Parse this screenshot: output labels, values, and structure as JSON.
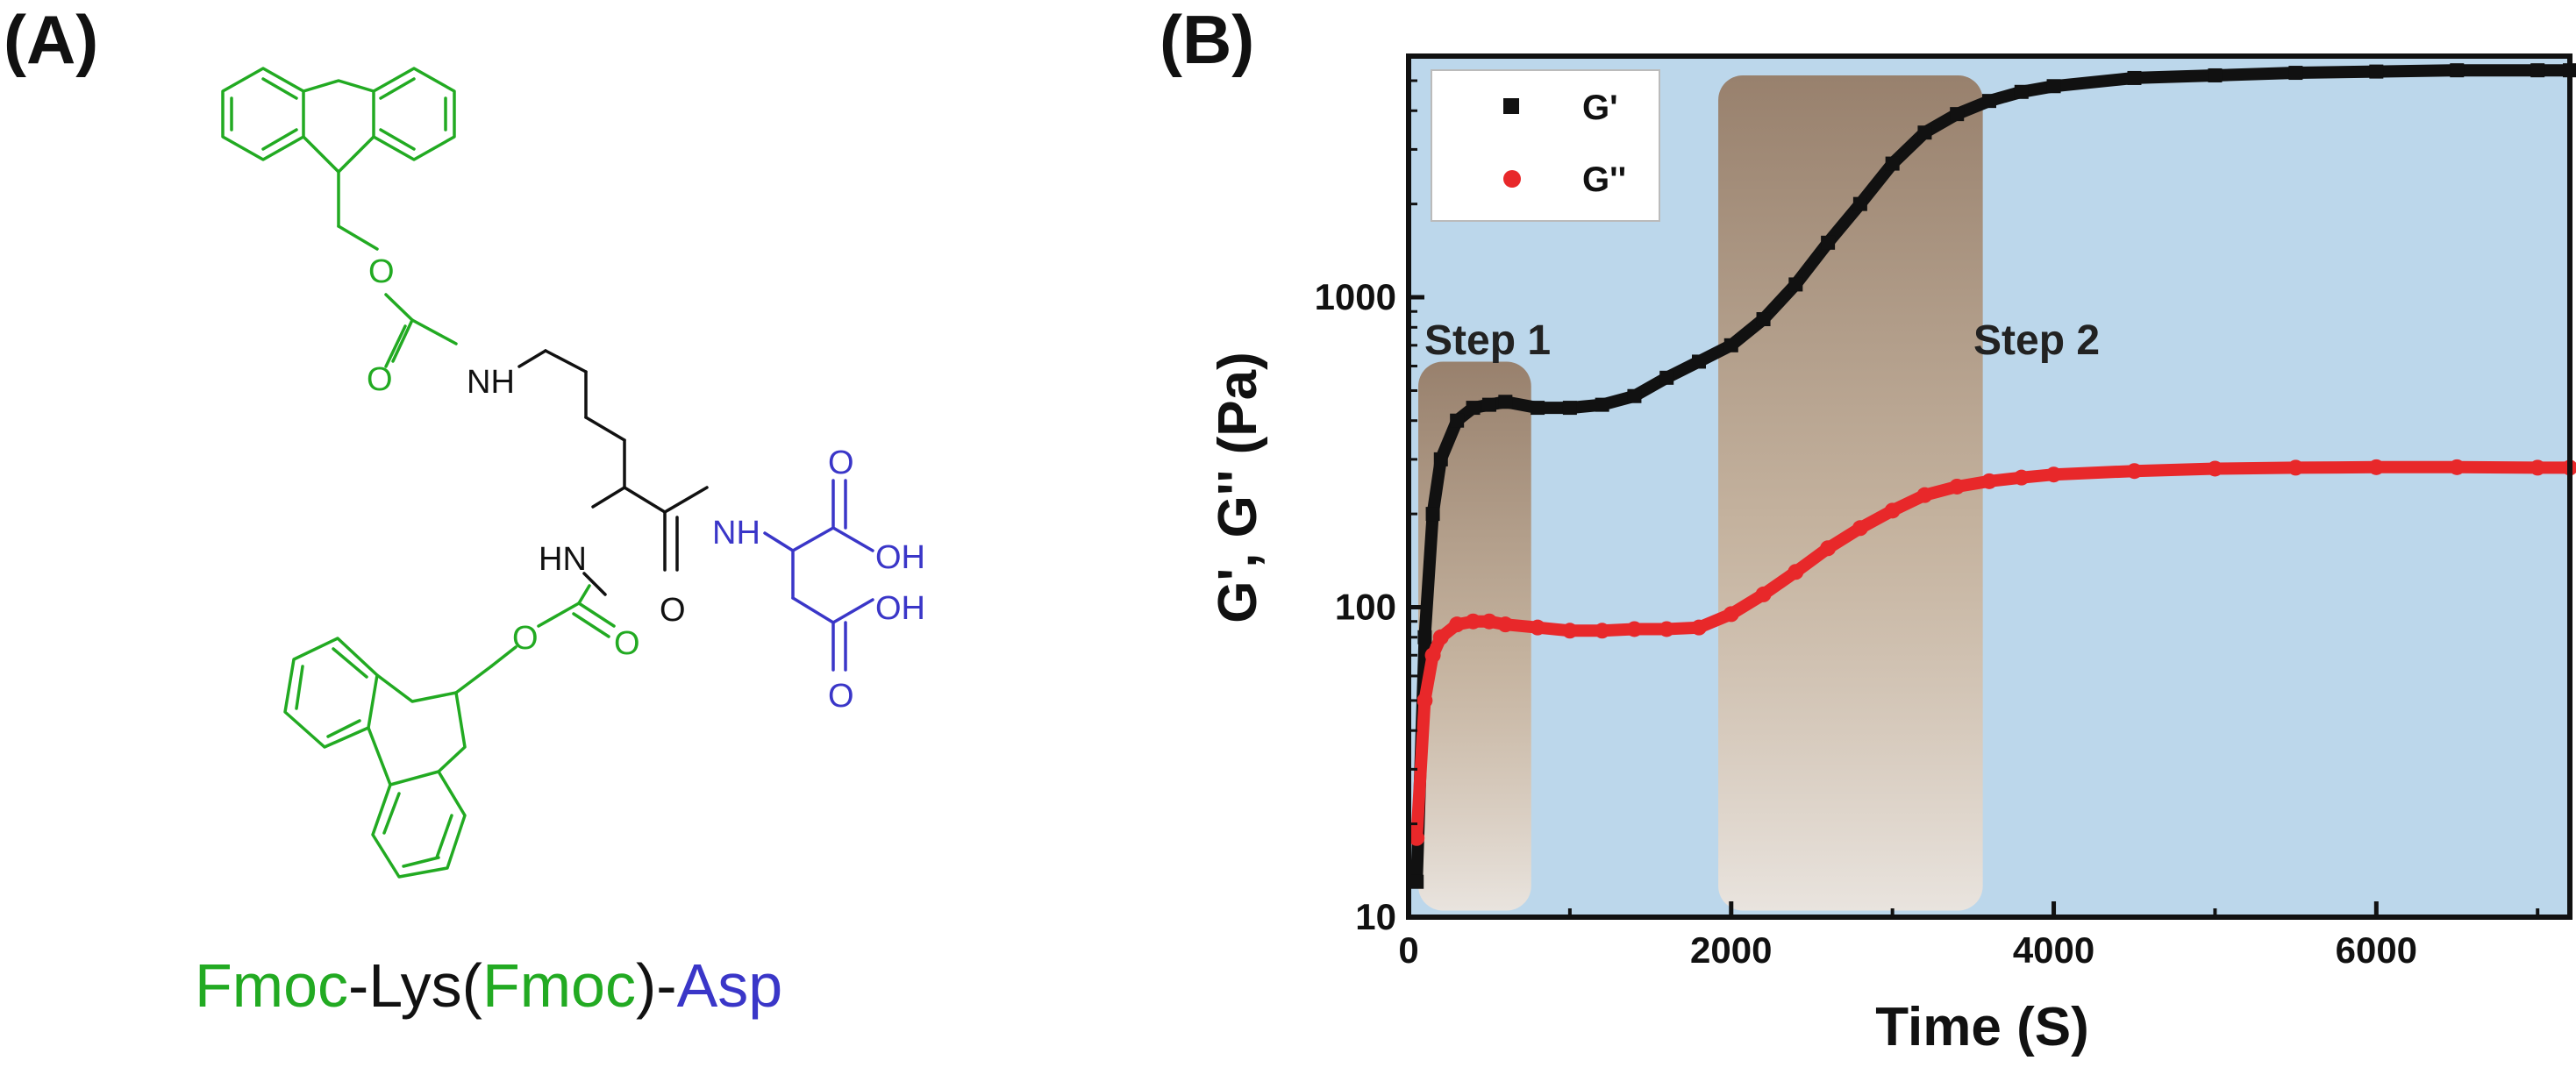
{
  "panel_a": {
    "label": "(A)",
    "caption": {
      "fmoc1": "Fmoc",
      "dash1": "-Lys(",
      "fmoc2": "Fmoc",
      "dash2": ")-",
      "asp": "Asp"
    },
    "atoms": {
      "o_ester1": "O",
      "o_carbonyl1": "O",
      "nh1": "NH",
      "hn2": "HN",
      "o_ester2": "O",
      "o_carbonyl2": "O",
      "o_amide": "O",
      "nh3": "NH",
      "o_acid1": "O",
      "oh1": "OH",
      "oh2": "OH",
      "o_acid2": "O"
    },
    "colors": {
      "fmoc": "#22aa22",
      "lys": "#111111",
      "asp": "#3a36c8"
    }
  },
  "panel_b": {
    "label": "(B)"
  },
  "chart_data": {
    "type": "scatter",
    "title": "",
    "xlabel": "Time (S)",
    "ylabel": "G', G'' (Pa)",
    "xlim": [
      0,
      7200
    ],
    "ylim": [
      10,
      6000
    ],
    "yscale": "log",
    "xticks": [
      0,
      2000,
      4000,
      6000
    ],
    "xtick_labels": [
      "0",
      "2000",
      "4000",
      "6000"
    ],
    "yticks": [
      10,
      100,
      1000
    ],
    "ytick_labels": [
      "10",
      "100",
      "1000"
    ],
    "legend": {
      "position": "top-left",
      "entries": [
        "G'",
        "G''"
      ]
    },
    "background_color": "#bcd7eb",
    "series": [
      {
        "name": "G'",
        "color": "#111111",
        "marker": "square",
        "x": [
          50,
          100,
          150,
          200,
          300,
          400,
          500,
          600,
          800,
          1000,
          1200,
          1400,
          1600,
          1800,
          2000,
          2200,
          2400,
          2600,
          2800,
          3000,
          3200,
          3400,
          3600,
          3800,
          4000,
          4500,
          5000,
          5500,
          6000,
          6500,
          7000,
          7200
        ],
        "y": [
          13,
          80,
          200,
          300,
          400,
          440,
          450,
          460,
          440,
          440,
          450,
          480,
          550,
          620,
          700,
          850,
          1100,
          1500,
          2000,
          2700,
          3400,
          3900,
          4300,
          4600,
          4800,
          5100,
          5200,
          5300,
          5350,
          5400,
          5400,
          5400
        ]
      },
      {
        "name": "G''",
        "color": "#e8282a",
        "marker": "circle",
        "x": [
          50,
          100,
          150,
          200,
          300,
          400,
          500,
          600,
          800,
          1000,
          1200,
          1400,
          1600,
          1800,
          2000,
          2200,
          2400,
          2600,
          2800,
          3000,
          3200,
          3400,
          3600,
          3800,
          4000,
          4500,
          5000,
          5500,
          6000,
          6500,
          7000,
          7200
        ],
        "y": [
          18,
          50,
          70,
          80,
          88,
          90,
          90,
          88,
          86,
          84,
          84,
          85,
          85,
          86,
          95,
          110,
          130,
          155,
          180,
          205,
          230,
          245,
          255,
          262,
          268,
          275,
          280,
          282,
          283,
          283,
          282,
          282
        ]
      }
    ],
    "annotations": [
      {
        "text": "Step 1",
        "x": 800,
        "y": 1000
      },
      {
        "text": "Step 2",
        "x": 4200,
        "y": 1000
      }
    ],
    "highlight_regions": [
      {
        "name": "step-1-region",
        "x0": 60,
        "x1": 760,
        "y0": 10.5,
        "y1": 620
      },
      {
        "name": "step-2-region",
        "x0": 1920,
        "x1": 3560,
        "y0": 10.5,
        "y1": 5200
      }
    ]
  }
}
